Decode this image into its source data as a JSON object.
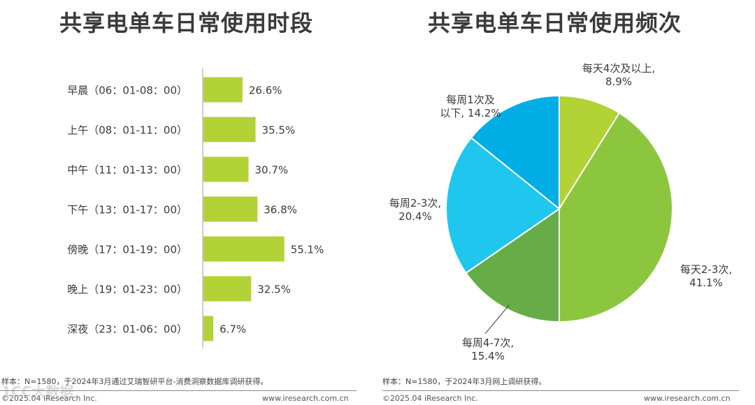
{
  "left_title": "共享电单车日常使用时段",
  "right_title": "共享电单车日常使用频次",
  "chart_data": [
    {
      "type": "bar",
      "orientation": "horizontal",
      "title": "共享电单车日常使用时段",
      "categories": [
        "早晨（06：01-08：00）",
        "上午（08：01-11：00）",
        "中午（11：01-13：00）",
        "下午（13：01-17：00）",
        "傍晚（17：01-19：00）",
        "晚上（19：01-23：00）",
        "深夜（23：01-06：00）"
      ],
      "values": [
        26.6,
        35.5,
        30.7,
        36.8,
        55.1,
        32.5,
        6.7
      ],
      "labels": [
        "26.6%",
        "35.5%",
        "30.7%",
        "36.8%",
        "55.1%",
        "32.5%",
        "6.7%"
      ],
      "xlim": [
        0,
        100
      ],
      "grid": false,
      "color": "#b2d235"
    },
    {
      "type": "pie",
      "title": "共享电单车日常使用频次",
      "slices": [
        {
          "label_lines": [
            "每天4次及以上,",
            "8.9%"
          ],
          "value": 8.9,
          "color": "#b2d235"
        },
        {
          "label_lines": [
            "每天2-3次,",
            "41.1%"
          ],
          "value": 41.1,
          "color": "#8cc63f"
        },
        {
          "label_lines": [
            "每周4-7次,",
            "15.4%"
          ],
          "value": 15.4,
          "color": "#66ad47"
        },
        {
          "label_lines": [
            "每周2-3次,",
            "20.4%"
          ],
          "value": 20.4,
          "color": "#1fc7ee"
        },
        {
          "label_lines": [
            "每周1次及",
            "以下, 14.2%"
          ],
          "value": 14.2,
          "color": "#00aee6"
        }
      ]
    }
  ],
  "notes": {
    "left": "样本：N=1580，于2024年3月通过艾瑞智研平台-消费洞察数据库调研获得。",
    "right": "样本：N=1580，于2024年3月网上调研获得。"
  },
  "footer": {
    "copyright": "©2025.04 iResearch Inc.",
    "url": "www.iresearch.com.cn"
  },
  "watermark": "1CC大数据"
}
